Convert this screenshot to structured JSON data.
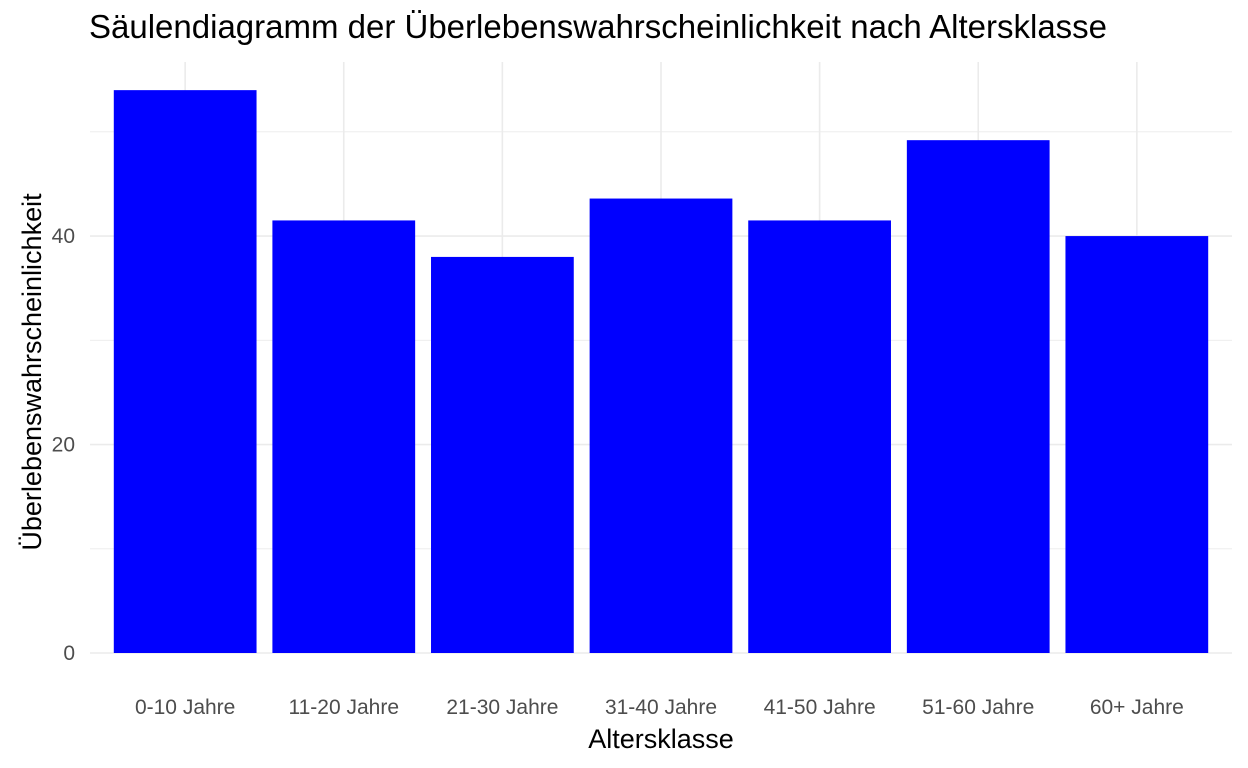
{
  "chart_data": {
    "type": "bar",
    "title": "Säulendiagramm der Überlebenswahrscheinlichkeit nach Altersklasse",
    "xlabel": "Altersklasse",
    "ylabel": "Überlebenswahrscheinlichkeit",
    "categories": [
      "0-10 Jahre",
      "11-20 Jahre",
      "21-30 Jahre",
      "31-40 Jahre",
      "41-50 Jahre",
      "51-60 Jahre",
      "60+ Jahre"
    ],
    "values": [
      54.0,
      41.5,
      38.0,
      43.6,
      41.5,
      49.2,
      40.0
    ],
    "ylim": [
      0,
      56.7
    ],
    "y_ticks": [
      0,
      20,
      40
    ],
    "y_tick_labels": [
      "0",
      "20",
      "40"
    ],
    "bar_color": "#0000ff",
    "grid": true,
    "legend": "none"
  }
}
